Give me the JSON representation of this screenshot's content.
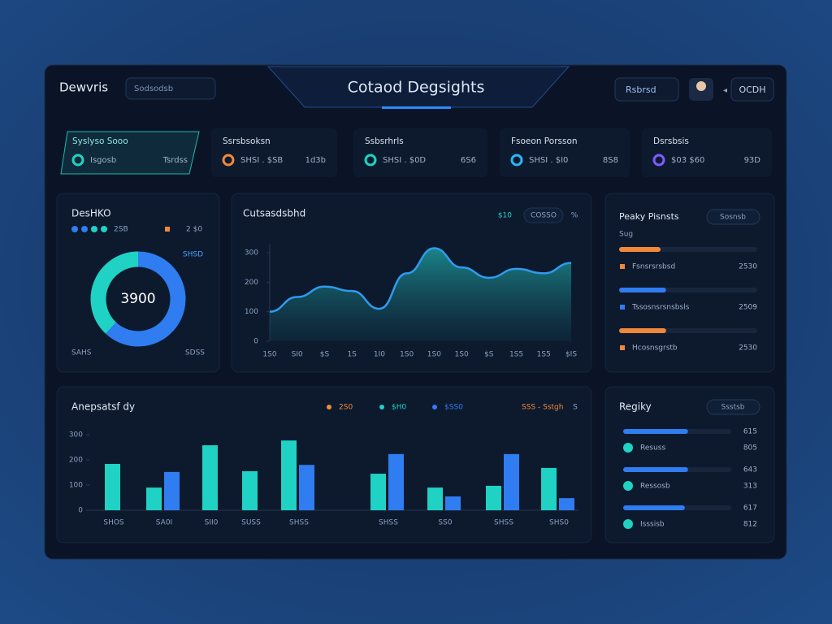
{
  "header": {
    "brand": "Dewvris",
    "search": "Sodsodsb",
    "title": "Cotaod Degsights",
    "dropdown": "Rsbrsd",
    "user": "OCDH"
  },
  "kpis": [
    {
      "title": "Syslyso Sooo",
      "label": "Isgosb",
      "value": "Tsrdss"
    },
    {
      "title": "Ssrsbsoksn",
      "label": "SHSI . $SB",
      "value": "1d3b"
    },
    {
      "title": "Ssbsrhrls",
      "label": "SHSI . $0D",
      "value": "6S6"
    },
    {
      "title": "Fsoeon Porsson",
      "label": "SHSI . $I0",
      "value": "8S8"
    },
    {
      "title": "Dsrsbsis",
      "label": "$03 $60",
      "value": "93D"
    }
  ],
  "pinned_panel": {
    "title": "Peaky Pisnsts",
    "button": "Sosnsb",
    "subtitle": "Sug",
    "rows": [
      {
        "label": "Fsnsrsrsbsd",
        "value": "2530",
        "progress": 30,
        "color": "#f0883a"
      },
      {
        "label": "Tssosnsrsnsbsls",
        "value": "2509",
        "progress": 34,
        "color": "#2f7df0"
      },
      {
        "label": "Hcosnsgrstb",
        "value": "2530",
        "progress": 34,
        "color": "#f0883a"
      }
    ]
  },
  "region_panel": {
    "title": "Regiky",
    "button": "Ssstsb",
    "rows": [
      {
        "bar_value": "615",
        "progress": 60,
        "label": "Resuss",
        "value": "805"
      },
      {
        "bar_value": "643",
        "progress": 60,
        "label": "Ressosb",
        "value": "313"
      },
      {
        "bar_value": "617",
        "progress": 57,
        "label": "Isssisb",
        "value": "812"
      }
    ]
  },
  "chart_data": [
    {
      "type": "pie",
      "title": "DesHKO",
      "legend": [
        "2SB",
        "2 $0"
      ],
      "callout": "SHSD",
      "center_label": "3900",
      "footer": [
        "SAHS",
        "SDSS"
      ],
      "values": [
        62,
        38
      ],
      "colors": [
        "#2f7df0",
        "#1fd2c4"
      ]
    },
    {
      "type": "line",
      "title": "Cutsasdsbhd",
      "range_button": "COSSO",
      "menu": "%",
      "categories": [
        "1S0",
        "SI0",
        "$S",
        "1S",
        "1I0",
        "1S0",
        "1S0",
        "1S0",
        "$S",
        "1S5",
        "1S5",
        "$IS"
      ],
      "series": [
        {
          "name": "$10",
          "color": "#2f9bf0",
          "values": [
            100,
            150,
            185,
            170,
            110,
            230,
            315,
            250,
            215,
            245,
            230,
            265
          ]
        }
      ],
      "ylim": [
        0,
        330
      ],
      "yticks": [
        0,
        100,
        200,
        300
      ]
    },
    {
      "type": "bar",
      "title": "Anepsatsf dy",
      "note": "SSS - Sstgh",
      "menu": "S",
      "categories": [
        "SHOS",
        "SA0I",
        "SII0",
        "SUSS",
        "SHSS",
        "SHSS",
        "SS0",
        "SHSS",
        "SHS0"
      ],
      "series": [
        {
          "name": "2S0",
          "color": "#f0883a",
          "values": [
            null,
            null,
            null,
            null,
            null,
            null,
            null,
            null,
            null
          ]
        },
        {
          "name": "$H0",
          "color": "#1fd2c4",
          "values": [
            184,
            90,
            258,
            155,
            277,
            145,
            90,
            97,
            168
          ]
        },
        {
          "name": "$SS0",
          "color": "#2f7df0",
          "values": [
            null,
            152,
            null,
            null,
            180,
            223,
            55,
            223,
            48
          ]
        }
      ],
      "ylim": [
        0,
        300
      ],
      "yticks": [
        0,
        100,
        200,
        300
      ]
    }
  ]
}
